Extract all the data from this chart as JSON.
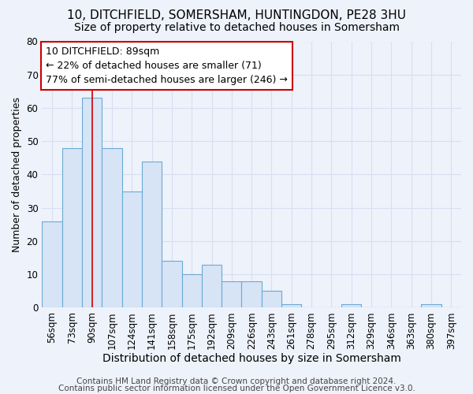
{
  "title1": "10, DITCHFIELD, SOMERSHAM, HUNTINGDON, PE28 3HU",
  "title2": "Size of property relative to detached houses in Somersham",
  "xlabel": "Distribution of detached houses by size in Somersham",
  "ylabel": "Number of detached properties",
  "categories": [
    "56sqm",
    "73sqm",
    "90sqm",
    "107sqm",
    "124sqm",
    "141sqm",
    "158sqm",
    "175sqm",
    "192sqm",
    "209sqm",
    "226sqm",
    "243sqm",
    "261sqm",
    "278sqm",
    "295sqm",
    "312sqm",
    "329sqm",
    "346sqm",
    "363sqm",
    "380sqm",
    "397sqm"
  ],
  "values": [
    26,
    48,
    63,
    48,
    35,
    44,
    14,
    10,
    13,
    8,
    8,
    5,
    1,
    0,
    0,
    1,
    0,
    0,
    0,
    1,
    0
  ],
  "bar_color": "#d6e4f5",
  "bar_edge_color": "#6aaad4",
  "red_line_index": 2,
  "ylim": [
    0,
    80
  ],
  "yticks": [
    0,
    10,
    20,
    30,
    40,
    50,
    60,
    70,
    80
  ],
  "annotation_line1": "10 DITCHFIELD: 89sqm",
  "annotation_line2": "← 22% of detached houses are smaller (71)",
  "annotation_line3": "77% of semi-detached houses are larger (246) →",
  "annotation_box_color": "#ffffff",
  "annotation_box_edge_color": "#cc0000",
  "footer1": "Contains HM Land Registry data © Crown copyright and database right 2024.",
  "footer2": "Contains public sector information licensed under the Open Government Licence v3.0.",
  "background_color": "#eef2fb",
  "grid_color": "#d8dff0",
  "title1_fontsize": 11,
  "title2_fontsize": 10,
  "xlabel_fontsize": 10,
  "ylabel_fontsize": 9,
  "tick_fontsize": 8.5,
  "annotation_fontsize": 9,
  "footer_fontsize": 7.5
}
